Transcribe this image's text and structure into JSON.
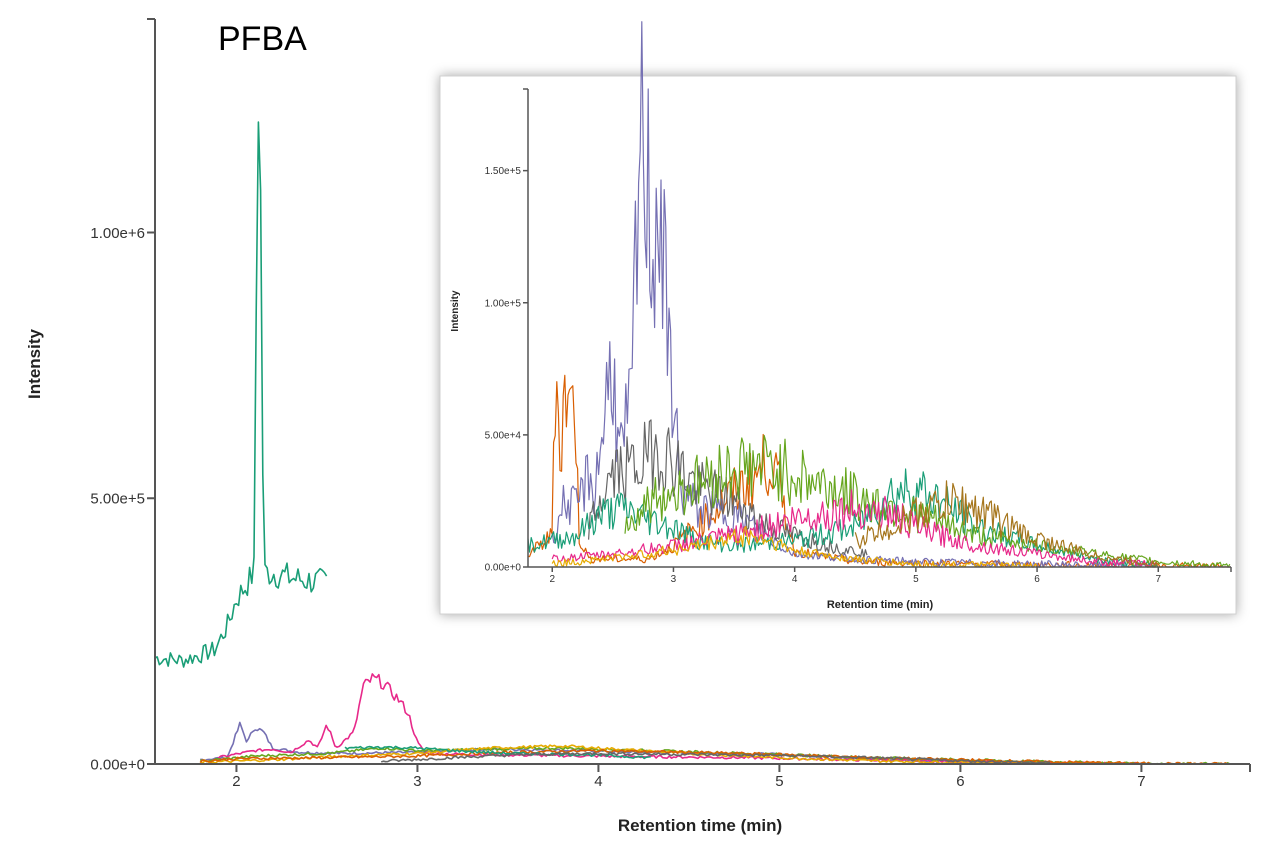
{
  "chart_data": [
    {
      "type": "line",
      "title": "PFBA",
      "xlabel": "Retention time (min)",
      "ylabel": "Intensity",
      "xlim": [
        1.55,
        7.6
      ],
      "ylim": [
        0,
        1270000
      ],
      "x_ticks": [
        2,
        3,
        4,
        5,
        6,
        7
      ],
      "x_tick_labels": [
        "2",
        "3",
        "4",
        "5",
        "6",
        "7"
      ],
      "y_ticks": [
        0,
        500000,
        1000000
      ],
      "y_tick_labels": [
        "0.00e+0",
        "5.00e+5",
        "1.00e+6"
      ],
      "grid": false,
      "series": [
        {
          "color": "#1a9e77",
          "points": [
            [
              1.55,
              200000
            ],
            [
              1.7,
              195000
            ],
            [
              1.8,
              205000
            ],
            [
              1.88,
              215000
            ],
            [
              1.95,
              260000
            ],
            [
              2.0,
              310000
            ],
            [
              2.05,
              335000
            ],
            [
              2.08,
              350000
            ],
            [
              2.1,
              370000
            ],
            [
              2.11,
              900000
            ],
            [
              2.12,
              1270000
            ],
            [
              2.13,
              1200000
            ],
            [
              2.14,
              800000
            ],
            [
              2.15,
              360000
            ],
            [
              2.2,
              360000
            ],
            [
              2.3,
              350000
            ],
            [
              2.4,
              345000
            ],
            [
              2.5,
              340000
            ]
          ]
        },
        {
          "color": "#7570b3",
          "points": [
            [
              1.8,
              8000
            ],
            [
              1.95,
              12000
            ],
            [
              2.02,
              75000
            ],
            [
              2.06,
              40000
            ],
            [
              2.1,
              70000
            ],
            [
              2.15,
              60000
            ],
            [
              2.2,
              30000
            ],
            [
              2.35,
              22000
            ],
            [
              2.6,
              20000
            ],
            [
              3.0,
              22000
            ],
            [
              3.4,
              28000
            ],
            [
              3.8,
              26000
            ],
            [
              4.2,
              22000
            ],
            [
              4.6,
              20000
            ],
            [
              5.0,
              18000
            ],
            [
              5.3,
              14000
            ],
            [
              5.6,
              8000
            ],
            [
              6.0,
              4000
            ],
            [
              6.5,
              2000
            ],
            [
              7.0,
              0
            ]
          ]
        },
        {
          "color": "#e7298a",
          "points": [
            [
              1.9,
              12000
            ],
            [
              2.1,
              25000
            ],
            [
              2.2,
              28000
            ],
            [
              2.3,
              22000
            ],
            [
              2.4,
              45000
            ],
            [
              2.45,
              30000
            ],
            [
              2.5,
              75000
            ],
            [
              2.55,
              30000
            ],
            [
              2.65,
              60000
            ],
            [
              2.7,
              145000
            ],
            [
              2.75,
              160000
            ],
            [
              2.8,
              155000
            ],
            [
              2.9,
              120000
            ],
            [
              2.95,
              95000
            ],
            [
              3.0,
              40000
            ],
            [
              3.05,
              20000
            ],
            [
              3.3,
              18000
            ],
            [
              3.7,
              16000
            ],
            [
              4.2,
              14000
            ],
            [
              4.8,
              12000
            ],
            [
              5.4,
              8000
            ],
            [
              6.0,
              5000
            ],
            [
              6.5,
              2000
            ],
            [
              7.0,
              0
            ]
          ]
        },
        {
          "color": "#66a61e",
          "points": [
            [
              1.8,
              5000
            ],
            [
              2.1,
              15000
            ],
            [
              2.5,
              20000
            ],
            [
              2.8,
              30000
            ],
            [
              3.0,
              25000
            ],
            [
              3.4,
              28000
            ],
            [
              3.8,
              30000
            ],
            [
              4.2,
              26000
            ],
            [
              4.6,
              22000
            ],
            [
              5.0,
              18000
            ],
            [
              5.5,
              12000
            ],
            [
              6.0,
              8000
            ],
            [
              6.5,
              4000
            ],
            [
              7.0,
              1000
            ],
            [
              7.5,
              0
            ]
          ]
        },
        {
          "color": "#e6ab02",
          "points": [
            [
              1.8,
              3000
            ],
            [
              2.2,
              8000
            ],
            [
              2.6,
              15000
            ],
            [
              3.0,
              20000
            ],
            [
              3.4,
              30000
            ],
            [
              3.8,
              34000
            ],
            [
              4.2,
              26000
            ],
            [
              4.6,
              18000
            ],
            [
              5.0,
              12000
            ],
            [
              5.5,
              6000
            ],
            [
              6.0,
              3000
            ],
            [
              6.5,
              1000
            ]
          ]
        },
        {
          "color": "#d95f02",
          "points": [
            [
              1.8,
              5000
            ],
            [
              2.0,
              10000
            ],
            [
              2.5,
              12000
            ],
            [
              3.0,
              15000
            ],
            [
              3.5,
              22000
            ],
            [
              4.0,
              25000
            ],
            [
              4.5,
              22000
            ],
            [
              5.0,
              18000
            ],
            [
              5.5,
              12000
            ],
            [
              6.0,
              8000
            ],
            [
              6.5,
              4000
            ],
            [
              7.0,
              1000
            ],
            [
              7.5,
              0
            ]
          ]
        },
        {
          "color": "#1b9e77",
          "points": [
            [
              2.6,
              30000
            ],
            [
              2.8,
              32000
            ],
            [
              3.0,
              30000
            ],
            [
              3.2,
              25000
            ],
            [
              3.5,
              20000
            ],
            [
              3.9,
              18000
            ],
            [
              4.3,
              12000
            ]
          ]
        },
        {
          "color": "#666666",
          "points": [
            [
              2.8,
              5000
            ],
            [
              3.2,
              12000
            ],
            [
              3.6,
              18000
            ],
            [
              4.0,
              20000
            ],
            [
              4.5,
              18000
            ],
            [
              5.0,
              16000
            ],
            [
              5.5,
              12000
            ],
            [
              6.0,
              6000
            ],
            [
              6.5,
              2000
            ]
          ]
        }
      ]
    },
    {
      "type": "line",
      "title": "",
      "xlabel": "Retention time (min)",
      "ylabel": "Intensity",
      "xlim": [
        1.8,
        7.6
      ],
      "ylim": [
        0,
        165000
      ],
      "x_ticks": [
        2,
        3,
        4,
        5,
        6,
        7
      ],
      "x_tick_labels": [
        "2",
        "3",
        "4",
        "5",
        "6",
        "7"
      ],
      "y_ticks": [
        0,
        50000,
        100000,
        150000
      ],
      "y_tick_labels": [
        "0.00e+0",
        "5.00e+4",
        "1.00e+5",
        "1.50e+5"
      ],
      "grid": false,
      "series": [
        {
          "color": "#d95f02",
          "points": [
            [
              1.8,
              5000
            ],
            [
              1.9,
              8000
            ],
            [
              2.0,
              12000
            ],
            [
              2.02,
              77000
            ],
            [
              2.05,
              60000
            ],
            [
              2.08,
              40000
            ],
            [
              2.1,
              72000
            ],
            [
              2.15,
              55000
            ],
            [
              2.18,
              76000
            ],
            [
              2.22,
              12000
            ],
            [
              2.3,
              3000
            ],
            [
              2.8,
              3000
            ],
            [
              3.0,
              8000
            ],
            [
              3.3,
              20000
            ],
            [
              3.5,
              28000
            ],
            [
              3.7,
              35000
            ],
            [
              3.8,
              42000
            ],
            [
              3.9,
              25000
            ],
            [
              4.0,
              6000
            ],
            [
              4.5,
              2000
            ],
            [
              5.5,
              1000
            ],
            [
              7.6,
              0
            ]
          ]
        },
        {
          "color": "#7570b3",
          "points": [
            [
              2.0,
              10000
            ],
            [
              2.1,
              25000
            ],
            [
              2.2,
              22000
            ],
            [
              2.3,
              35000
            ],
            [
              2.35,
              28000
            ],
            [
              2.45,
              65000
            ],
            [
              2.5,
              80000
            ],
            [
              2.55,
              40000
            ],
            [
              2.65,
              60000
            ],
            [
              2.72,
              150000
            ],
            [
              2.76,
              165000
            ],
            [
              2.82,
              120000
            ],
            [
              2.88,
              140000
            ],
            [
              2.92,
              110000
            ],
            [
              2.96,
              80000
            ],
            [
              3.0,
              70000
            ],
            [
              3.05,
              30000
            ],
            [
              3.2,
              22000
            ],
            [
              3.5,
              20000
            ],
            [
              4.0,
              5000
            ],
            [
              4.5,
              3000
            ],
            [
              5.0,
              2000
            ],
            [
              6.0,
              1000
            ],
            [
              7.0,
              0
            ]
          ]
        },
        {
          "color": "#666666",
          "points": [
            [
              2.3,
              15000
            ],
            [
              2.5,
              35000
            ],
            [
              2.7,
              38000
            ],
            [
              2.85,
              45000
            ],
            [
              3.0,
              40000
            ],
            [
              3.2,
              30000
            ],
            [
              3.5,
              25000
            ],
            [
              3.8,
              15000
            ],
            [
              4.0,
              12000
            ],
            [
              4.3,
              8000
            ],
            [
              4.6,
              5000
            ]
          ]
        },
        {
          "color": "#1a9e77",
          "points": [
            [
              1.8,
              8000
            ],
            [
              2.0,
              10000
            ],
            [
              2.2,
              12000
            ],
            [
              2.4,
              20000
            ],
            [
              2.6,
              22000
            ],
            [
              2.8,
              18000
            ],
            [
              3.0,
              15000
            ],
            [
              3.2,
              10000
            ],
            [
              3.5,
              8000
            ],
            [
              4.0,
              10000
            ],
            [
              4.5,
              15000
            ],
            [
              4.8,
              28000
            ],
            [
              5.0,
              30000
            ],
            [
              5.2,
              25000
            ],
            [
              5.5,
              15000
            ],
            [
              6.0,
              8000
            ],
            [
              6.5,
              3000
            ],
            [
              7.0,
              0
            ]
          ]
        },
        {
          "color": "#66a61e",
          "points": [
            [
              2.6,
              15000
            ],
            [
              2.8,
              25000
            ],
            [
              3.0,
              28000
            ],
            [
              3.2,
              32000
            ],
            [
              3.5,
              38000
            ],
            [
              3.8,
              38000
            ],
            [
              4.0,
              35000
            ],
            [
              4.3,
              30000
            ],
            [
              4.6,
              25000
            ],
            [
              5.0,
              20000
            ],
            [
              5.5,
              12000
            ],
            [
              6.0,
              8000
            ],
            [
              6.5,
              5000
            ],
            [
              7.0,
              2000
            ],
            [
              7.6,
              0
            ]
          ]
        },
        {
          "color": "#e7298a",
          "points": [
            [
              2.0,
              3000
            ],
            [
              2.5,
              5000
            ],
            [
              3.0,
              8000
            ],
            [
              3.5,
              12000
            ],
            [
              4.0,
              18000
            ],
            [
              4.5,
              22000
            ],
            [
              4.8,
              20000
            ],
            [
              5.0,
              15000
            ],
            [
              5.2,
              12000
            ],
            [
              5.5,
              8000
            ],
            [
              6.0,
              5000
            ],
            [
              6.5,
              2000
            ],
            [
              7.0,
              1000
            ]
          ]
        },
        {
          "color": "#a6761d",
          "points": [
            [
              4.5,
              10000
            ],
            [
              4.8,
              15000
            ],
            [
              5.0,
              20000
            ],
            [
              5.3,
              25000
            ],
            [
              5.6,
              20000
            ],
            [
              5.9,
              12000
            ],
            [
              6.2,
              8000
            ],
            [
              6.5,
              4000
            ],
            [
              7.0,
              1000
            ]
          ]
        },
        {
          "color": "#e6ab02",
          "points": [
            [
              2.0,
              1000
            ],
            [
              2.4,
              3000
            ],
            [
              2.8,
              5000
            ],
            [
              3.2,
              8000
            ],
            [
              3.6,
              12000
            ],
            [
              3.8,
              10000
            ],
            [
              4.0,
              6000
            ],
            [
              4.5,
              3000
            ],
            [
              5.0,
              1000
            ],
            [
              6.0,
              0
            ]
          ]
        }
      ]
    }
  ]
}
